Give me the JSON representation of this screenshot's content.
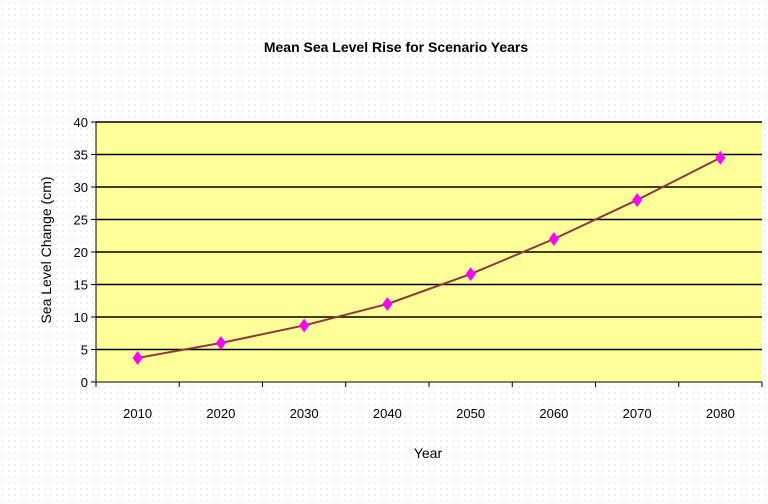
{
  "chart_data": {
    "type": "line",
    "title": "Mean Sea Level Rise for Scenario Years",
    "xlabel": "Year",
    "ylabel": "Sea Level Change (cm)",
    "categories": [
      "2010",
      "2020",
      "2030",
      "2040",
      "2050",
      "2060",
      "2070",
      "2080"
    ],
    "series": [
      {
        "values": [
          3.7,
          6.0,
          8.7,
          12.0,
          16.6,
          22.0,
          28.0,
          34.5
        ]
      }
    ],
    "ylim": [
      0,
      40
    ],
    "yticks": [
      0,
      5,
      10,
      15,
      20,
      25,
      30,
      35,
      40
    ],
    "grid": true,
    "legend": "none",
    "colors": {
      "plot_background": "#ffff99",
      "line": "#8b3a3a",
      "marker": "#ff00ff",
      "gridline": "#000000"
    }
  }
}
